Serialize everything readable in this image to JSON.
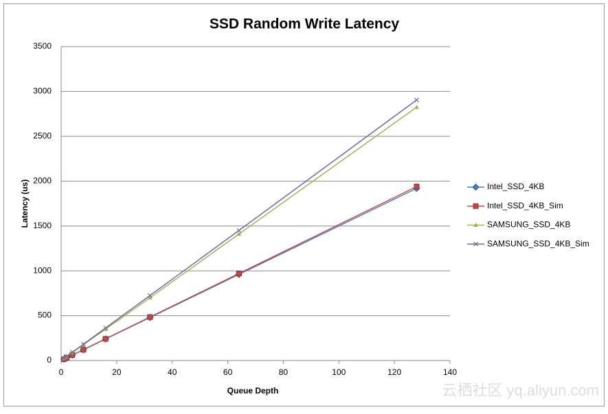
{
  "chart_data": {
    "type": "line",
    "title": "SSD Random Write Latency",
    "x_label": "Queue Depth",
    "y_label": "Latency (us)",
    "x": [
      1,
      2,
      4,
      8,
      16,
      32,
      64,
      128
    ],
    "series": [
      {
        "name": "Intel_SSD_4KB",
        "color": "#4a7ebb",
        "marker": "diamond",
        "values": [
          15,
          30,
          60,
          120,
          240,
          480,
          960,
          1920
        ]
      },
      {
        "name": "Intel_SSD_4KB_Sim",
        "color": "#be4b48",
        "marker": "square",
        "values": [
          15,
          30,
          61,
          121,
          242,
          485,
          970,
          1940
        ]
      },
      {
        "name": "SAMSUNG_SSD_4KB",
        "color": "#98b954",
        "marker": "triangle",
        "values": [
          22,
          44,
          88,
          176,
          350,
          700,
          1410,
          2825
        ]
      },
      {
        "name": "SAMSUNG_SSD_4KB_Sim",
        "color": "#7d60a0",
        "marker": "x",
        "values": [
          23,
          46,
          91,
          182,
          363,
          725,
          1450,
          2905
        ]
      }
    ],
    "xlim": [
      0,
      140
    ],
    "xticks": [
      0,
      20,
      40,
      60,
      80,
      100,
      120,
      140
    ],
    "ylim": [
      0,
      3500
    ],
    "yticks": [
      0,
      500,
      1000,
      1500,
      2000,
      2500,
      3000,
      3500
    ],
    "grid": true,
    "legend": "right",
    "watermark": "云栖社区 yq.aliyun.com"
  }
}
